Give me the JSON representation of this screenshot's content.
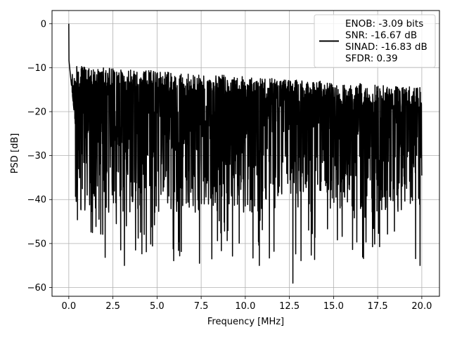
{
  "chart_data": {
    "type": "line",
    "title": "",
    "xlabel": "Frequency [MHz]",
    "ylabel": "PSD [dB]",
    "xlim": [
      -0.95,
      21.0
    ],
    "ylim": [
      -62.0,
      3.0
    ],
    "xticks": [
      0.0,
      2.5,
      5.0,
      7.5,
      10.0,
      12.5,
      15.0,
      17.5,
      20.0
    ],
    "xtick_labels": [
      "0.0",
      "2.5",
      "5.0",
      "7.5",
      "10.0",
      "12.5",
      "15.0",
      "17.5",
      "20.0"
    ],
    "yticks": [
      0,
      -10,
      -20,
      -30,
      -40,
      -50,
      -60
    ],
    "ytick_labels": [
      "0",
      "−10",
      "−20",
      "−30",
      "−40",
      "−50",
      "−60"
    ],
    "grid": true,
    "legend_position": "top-right",
    "line_color": "#000000",
    "noise_profile": {
      "start_x": 0.0,
      "end_x": 20.0,
      "peak_level": 0,
      "typical_level": -24,
      "upper_envelope_start": -12,
      "upper_envelope_end": -17,
      "lower_envelope": -36
    },
    "notable_points": [
      {
        "x": 0.0,
        "y": 0.0
      },
      {
        "x": 3.15,
        "y": -55.0
      },
      {
        "x": 7.4,
        "y": -54.5
      },
      {
        "x": 10.8,
        "y": -55.0
      },
      {
        "x": 12.7,
        "y": -59.0
      },
      {
        "x": 19.9,
        "y": -55.0
      }
    ],
    "legend": {
      "lines": [
        "ENOB: -3.09 bits",
        "SNR: -16.67 dB",
        "SINAD: -16.83 dB",
        "SFDR: 0.39"
      ]
    }
  }
}
